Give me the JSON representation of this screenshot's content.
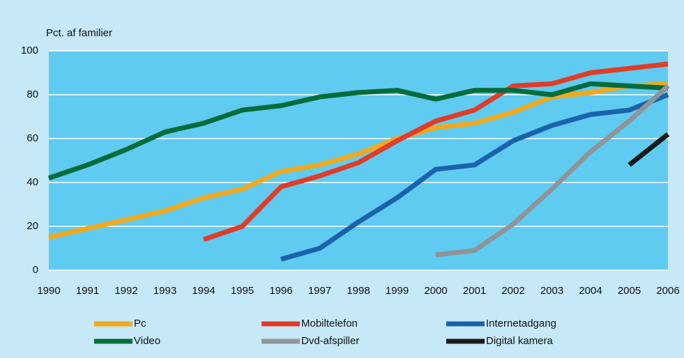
{
  "chart_data": {
    "type": "line",
    "y_label": "Pct. af familier",
    "categories": [
      "1990",
      "1991",
      "1992",
      "1993",
      "1994",
      "1995",
      "1996",
      "1997",
      "1998",
      "1999",
      "2000",
      "2001",
      "2002",
      "2003",
      "2004",
      "2005",
      "2006"
    ],
    "ylim": [
      0,
      100
    ],
    "yticks": [
      0,
      20,
      40,
      60,
      80,
      100
    ],
    "grid": true,
    "series": [
      {
        "name": "Pc",
        "color": "#f0a91e",
        "values": [
          15,
          19,
          23,
          27,
          33,
          37,
          45,
          48,
          53,
          60,
          65,
          67,
          72,
          79,
          81,
          84,
          85
        ]
      },
      {
        "name": "Mobiltelefon",
        "color": "#e03c28",
        "values": [
          null,
          null,
          null,
          null,
          14,
          20,
          38,
          43,
          49,
          59,
          68,
          73,
          84,
          85,
          90,
          92,
          94
        ]
      },
      {
        "name": "Internetadgang",
        "color": "#1b62ac",
        "values": [
          null,
          null,
          null,
          null,
          null,
          null,
          5,
          10,
          22,
          33,
          46,
          48,
          59,
          66,
          71,
          73,
          80
        ]
      },
      {
        "name": "Video",
        "color": "#006c3b",
        "values": [
          42,
          48,
          55,
          63,
          67,
          73,
          75,
          79,
          81,
          82,
          78,
          82,
          82,
          80,
          85,
          84,
          83
        ]
      },
      {
        "name": "Dvd-afspiller",
        "color": "#8e9599",
        "values": [
          null,
          null,
          null,
          null,
          null,
          null,
          null,
          null,
          null,
          null,
          7,
          9,
          21,
          37,
          54,
          68,
          84
        ]
      },
      {
        "name": "Digital kamera",
        "color": "#1a1a1a",
        "values": [
          null,
          null,
          null,
          null,
          null,
          null,
          null,
          null,
          null,
          null,
          null,
          null,
          null,
          null,
          null,
          48,
          62
        ]
      }
    ]
  }
}
